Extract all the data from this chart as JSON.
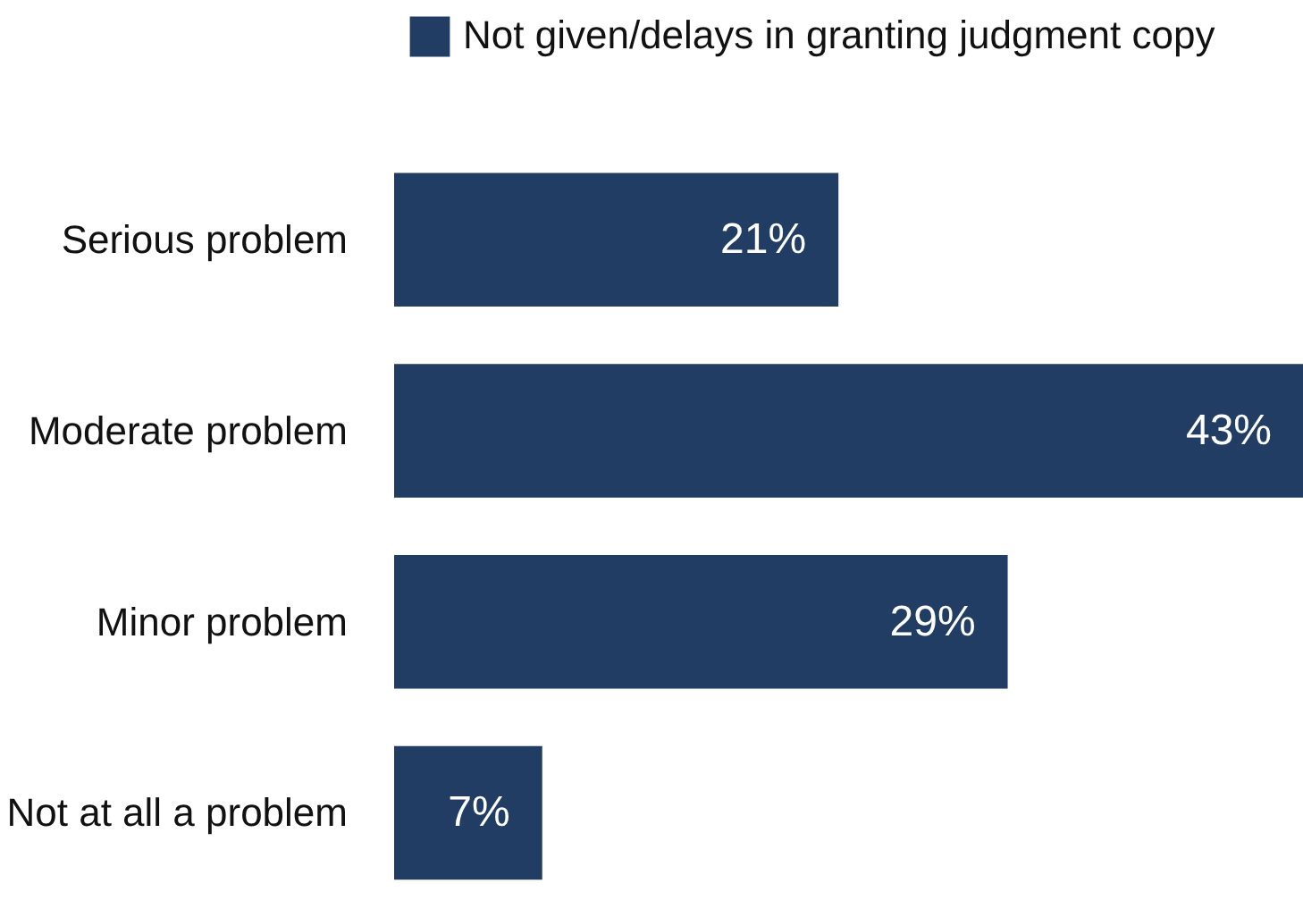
{
  "chart_data": {
    "type": "bar",
    "orientation": "horizontal",
    "categories": [
      "Serious problem",
      "Moderate problem",
      "Minor problem",
      "Not at all a problem"
    ],
    "series": [
      {
        "name": "Not given/delays in granting judgment copy",
        "color": "#213d63",
        "values": [
          21,
          43,
          29,
          7
        ],
        "value_labels": [
          "21%",
          "43%",
          "29%",
          "7%"
        ]
      }
    ],
    "legend": "top",
    "grid": false
  }
}
